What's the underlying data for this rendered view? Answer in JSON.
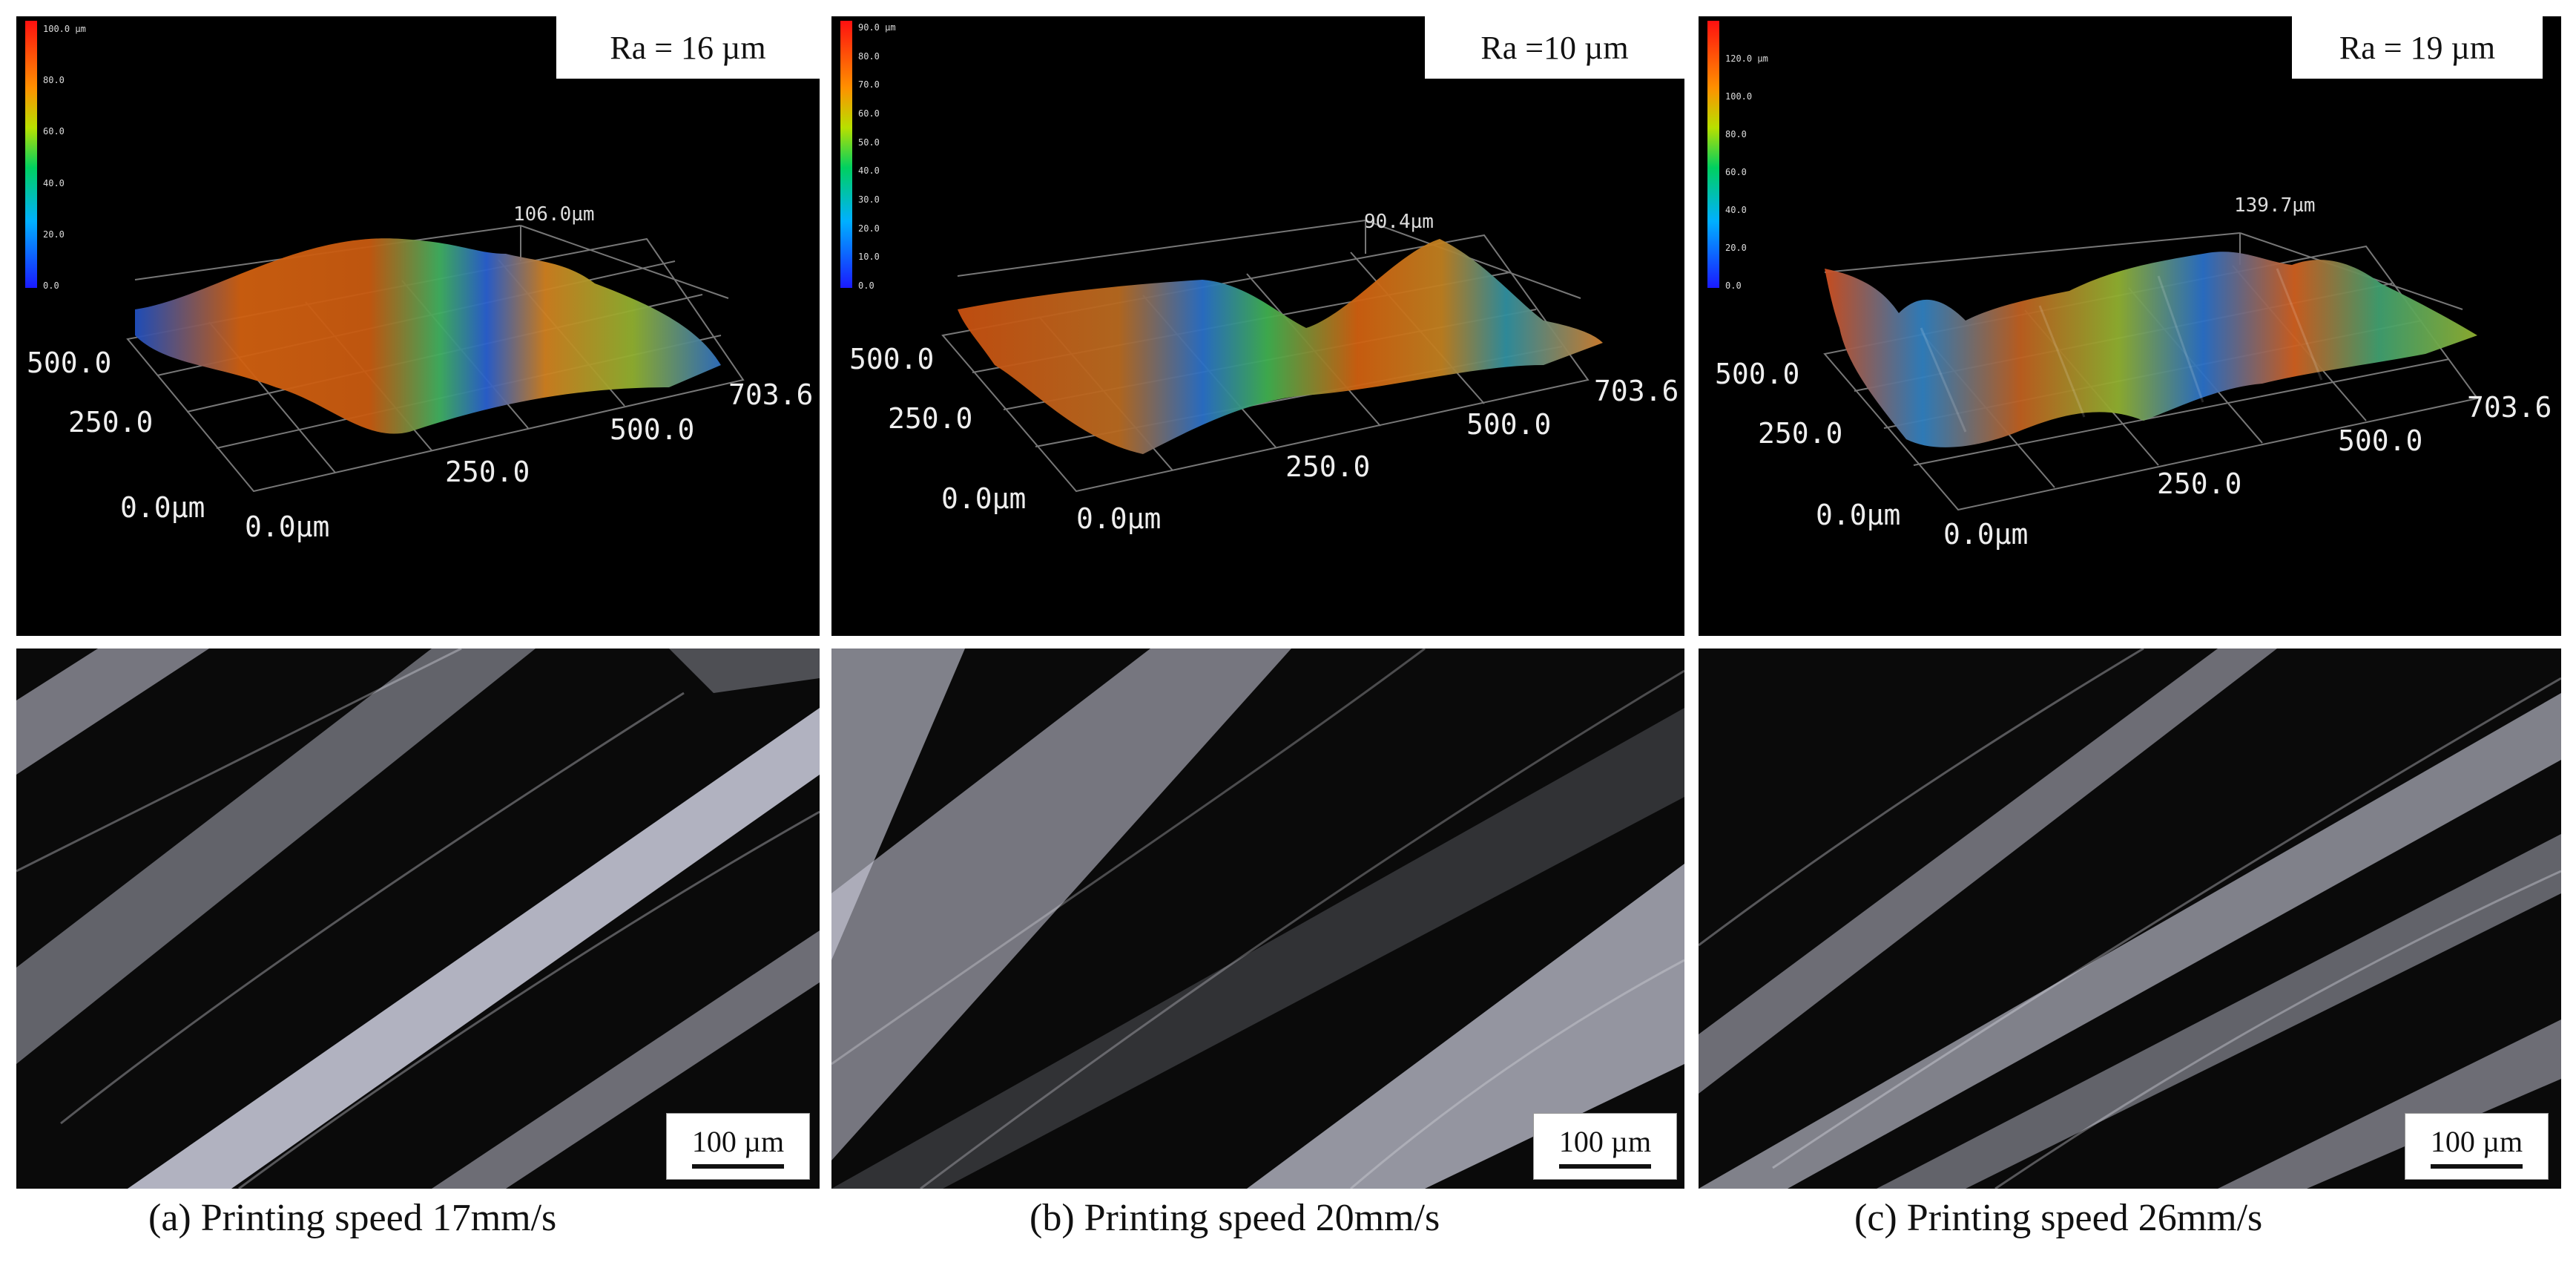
{
  "panels": [
    {
      "id": "a",
      "ra": "Ra = 16 µm",
      "colorbar_ticks": [
        "100.0 µm",
        "80.0",
        "60.0",
        "40.0",
        "20.0",
        "0.0"
      ],
      "peak_label": "106.0µm",
      "axis_labels": {
        "y_mid": "500.0",
        "y_low": "250.0",
        "origin_y": "0.0µm",
        "origin_x": "0.0µm",
        "x_mid": "250.0",
        "x_high": "500.0",
        "x_end": "703.6"
      },
      "scale_bar": "100 µm",
      "caption": "(a) Printing speed 17mm/s"
    },
    {
      "id": "b",
      "ra": "Ra =10 µm",
      "colorbar_ticks": [
        "90.0 µm",
        "80.0",
        "70.0",
        "60.0",
        "50.0",
        "40.0",
        "30.0",
        "20.0",
        "10.0",
        "0.0"
      ],
      "peak_label": "90.4µm",
      "axis_labels": {
        "y_mid": "500.0",
        "y_low": "250.0",
        "origin_y": "0.0µm",
        "origin_x": "0.0µm",
        "x_mid": "250.0",
        "x_high": "500.0",
        "x_end": "703.6"
      },
      "scale_bar": "100 µm",
      "caption": "(b) Printing speed 20mm/s"
    },
    {
      "id": "c",
      "ra": "Ra = 19 µm",
      "colorbar_ticks": [
        "120.0 µm",
        "100.0",
        "80.0",
        "60.0",
        "40.0",
        "20.0",
        "0.0"
      ],
      "peak_label": "139.7µm",
      "axis_labels": {
        "y_mid": "500.0",
        "y_low": "250.0",
        "origin_y": "0.0µm",
        "origin_x": "0.0µm",
        "x_mid": "250.0",
        "x_high": "500.0",
        "x_end": "703.6"
      },
      "scale_bar": "100 µm",
      "caption": "(c) Printing speed 26mm/s"
    }
  ]
}
